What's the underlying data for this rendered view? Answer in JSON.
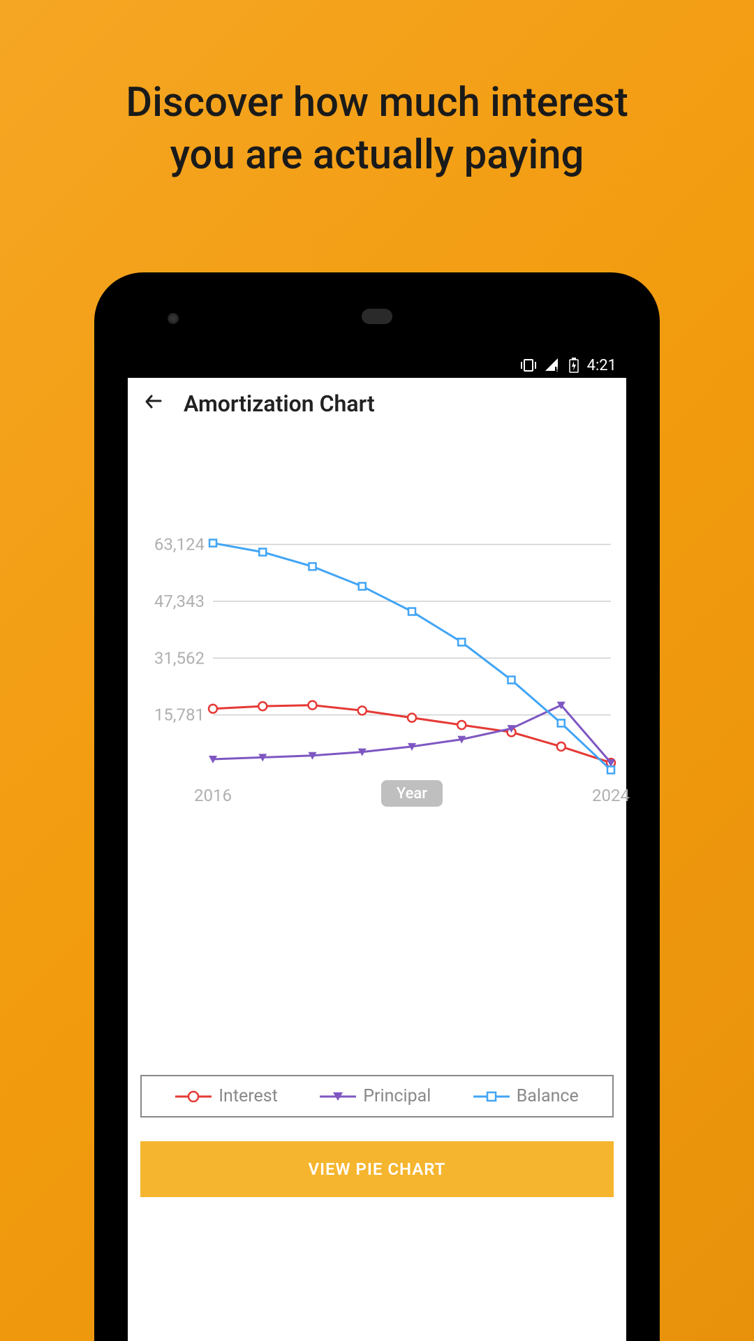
{
  "tagline_line1": "Discover how much interest",
  "tagline_line2": "you are actually paying",
  "status_bar": {
    "time": "4:21"
  },
  "app": {
    "title": "Amortization Chart",
    "x_axis_title": "Year",
    "button_label": "VIEW PIE CHART"
  },
  "chart": {
    "type": "line",
    "y_ticks": [
      "63,124",
      "47,343",
      "31,562",
      "15,781"
    ],
    "y_values": [
      63124,
      47343,
      31562,
      15781
    ],
    "x_tick_labels": [
      "2016",
      "2024"
    ],
    "x_range": [
      2016,
      2024
    ],
    "grid_color": "#d0d0d0",
    "axis_label_color": "#b0b0b0",
    "background": "#ffffff",
    "series": [
      {
        "name": "Interest",
        "color": "#e53935",
        "marker": "circle",
        "data": [
          17500,
          18200,
          18500,
          17000,
          15000,
          13000,
          11000,
          7000,
          2500
        ]
      },
      {
        "name": "Principal",
        "color": "#7e57c2",
        "marker": "triangle-down",
        "data": [
          3500,
          4000,
          4500,
          5500,
          7000,
          9000,
          12000,
          18500,
          2500
        ]
      },
      {
        "name": "Balance",
        "color": "#42a5f5",
        "marker": "square",
        "data": [
          63500,
          61000,
          57000,
          51500,
          44500,
          36000,
          25500,
          13500,
          500
        ]
      }
    ],
    "legend": [
      {
        "label": "Interest",
        "color": "#e53935",
        "marker": "circle"
      },
      {
        "label": "Principal",
        "color": "#7e57c2",
        "marker": "triangle-down"
      },
      {
        "label": "Balance",
        "color": "#42a5f5",
        "marker": "square"
      }
    ]
  },
  "colors": {
    "page_bg_start": "#f5a623",
    "page_bg_end": "#e8920c",
    "button_bg": "#f5b52e"
  }
}
